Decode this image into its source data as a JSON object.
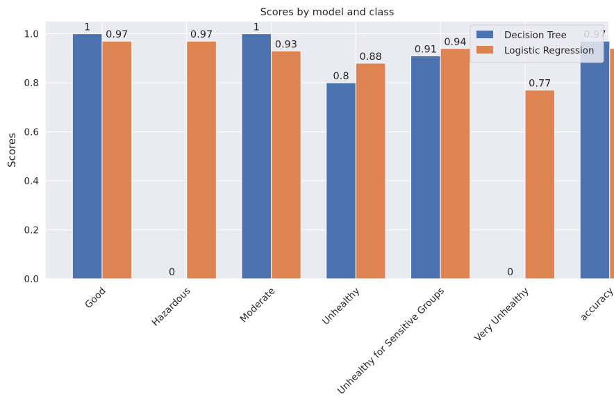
{
  "chart_data": {
    "type": "bar",
    "title": "Scores by model and class",
    "xlabel": "",
    "ylabel": "Scores",
    "ylim": [
      0,
      1.05
    ],
    "yticks": [
      0.0,
      0.2,
      0.4,
      0.6,
      0.8,
      1.0
    ],
    "ytick_labels": [
      "0.0",
      "0.2",
      "0.4",
      "0.6",
      "0.8",
      "1.0"
    ],
    "grid": true,
    "legend_position": "top-right",
    "categories": [
      "Good",
      "Hazardous",
      "Moderate",
      "Unhealthy",
      "Unhealthy for Sensitive Groups",
      "Very Unhealthy",
      "accuracy"
    ],
    "series": [
      {
        "name": "Decision Tree",
        "color": "#4c72b0",
        "values": [
          1.0,
          0.0,
          1.0,
          0.8,
          0.91,
          0.0,
          0.97
        ],
        "labels": [
          "1",
          "0",
          "1",
          "0.8",
          "0.91",
          "0",
          "0.97"
        ]
      },
      {
        "name": "Logistic Regression",
        "color": "#dd8452",
        "values": [
          0.97,
          0.97,
          0.93,
          0.88,
          0.94,
          0.77,
          0.94
        ],
        "labels": [
          "0.97",
          "0.97",
          "0.93",
          "0.88",
          "0.94",
          "0.77",
          "0.94"
        ]
      }
    ]
  }
}
